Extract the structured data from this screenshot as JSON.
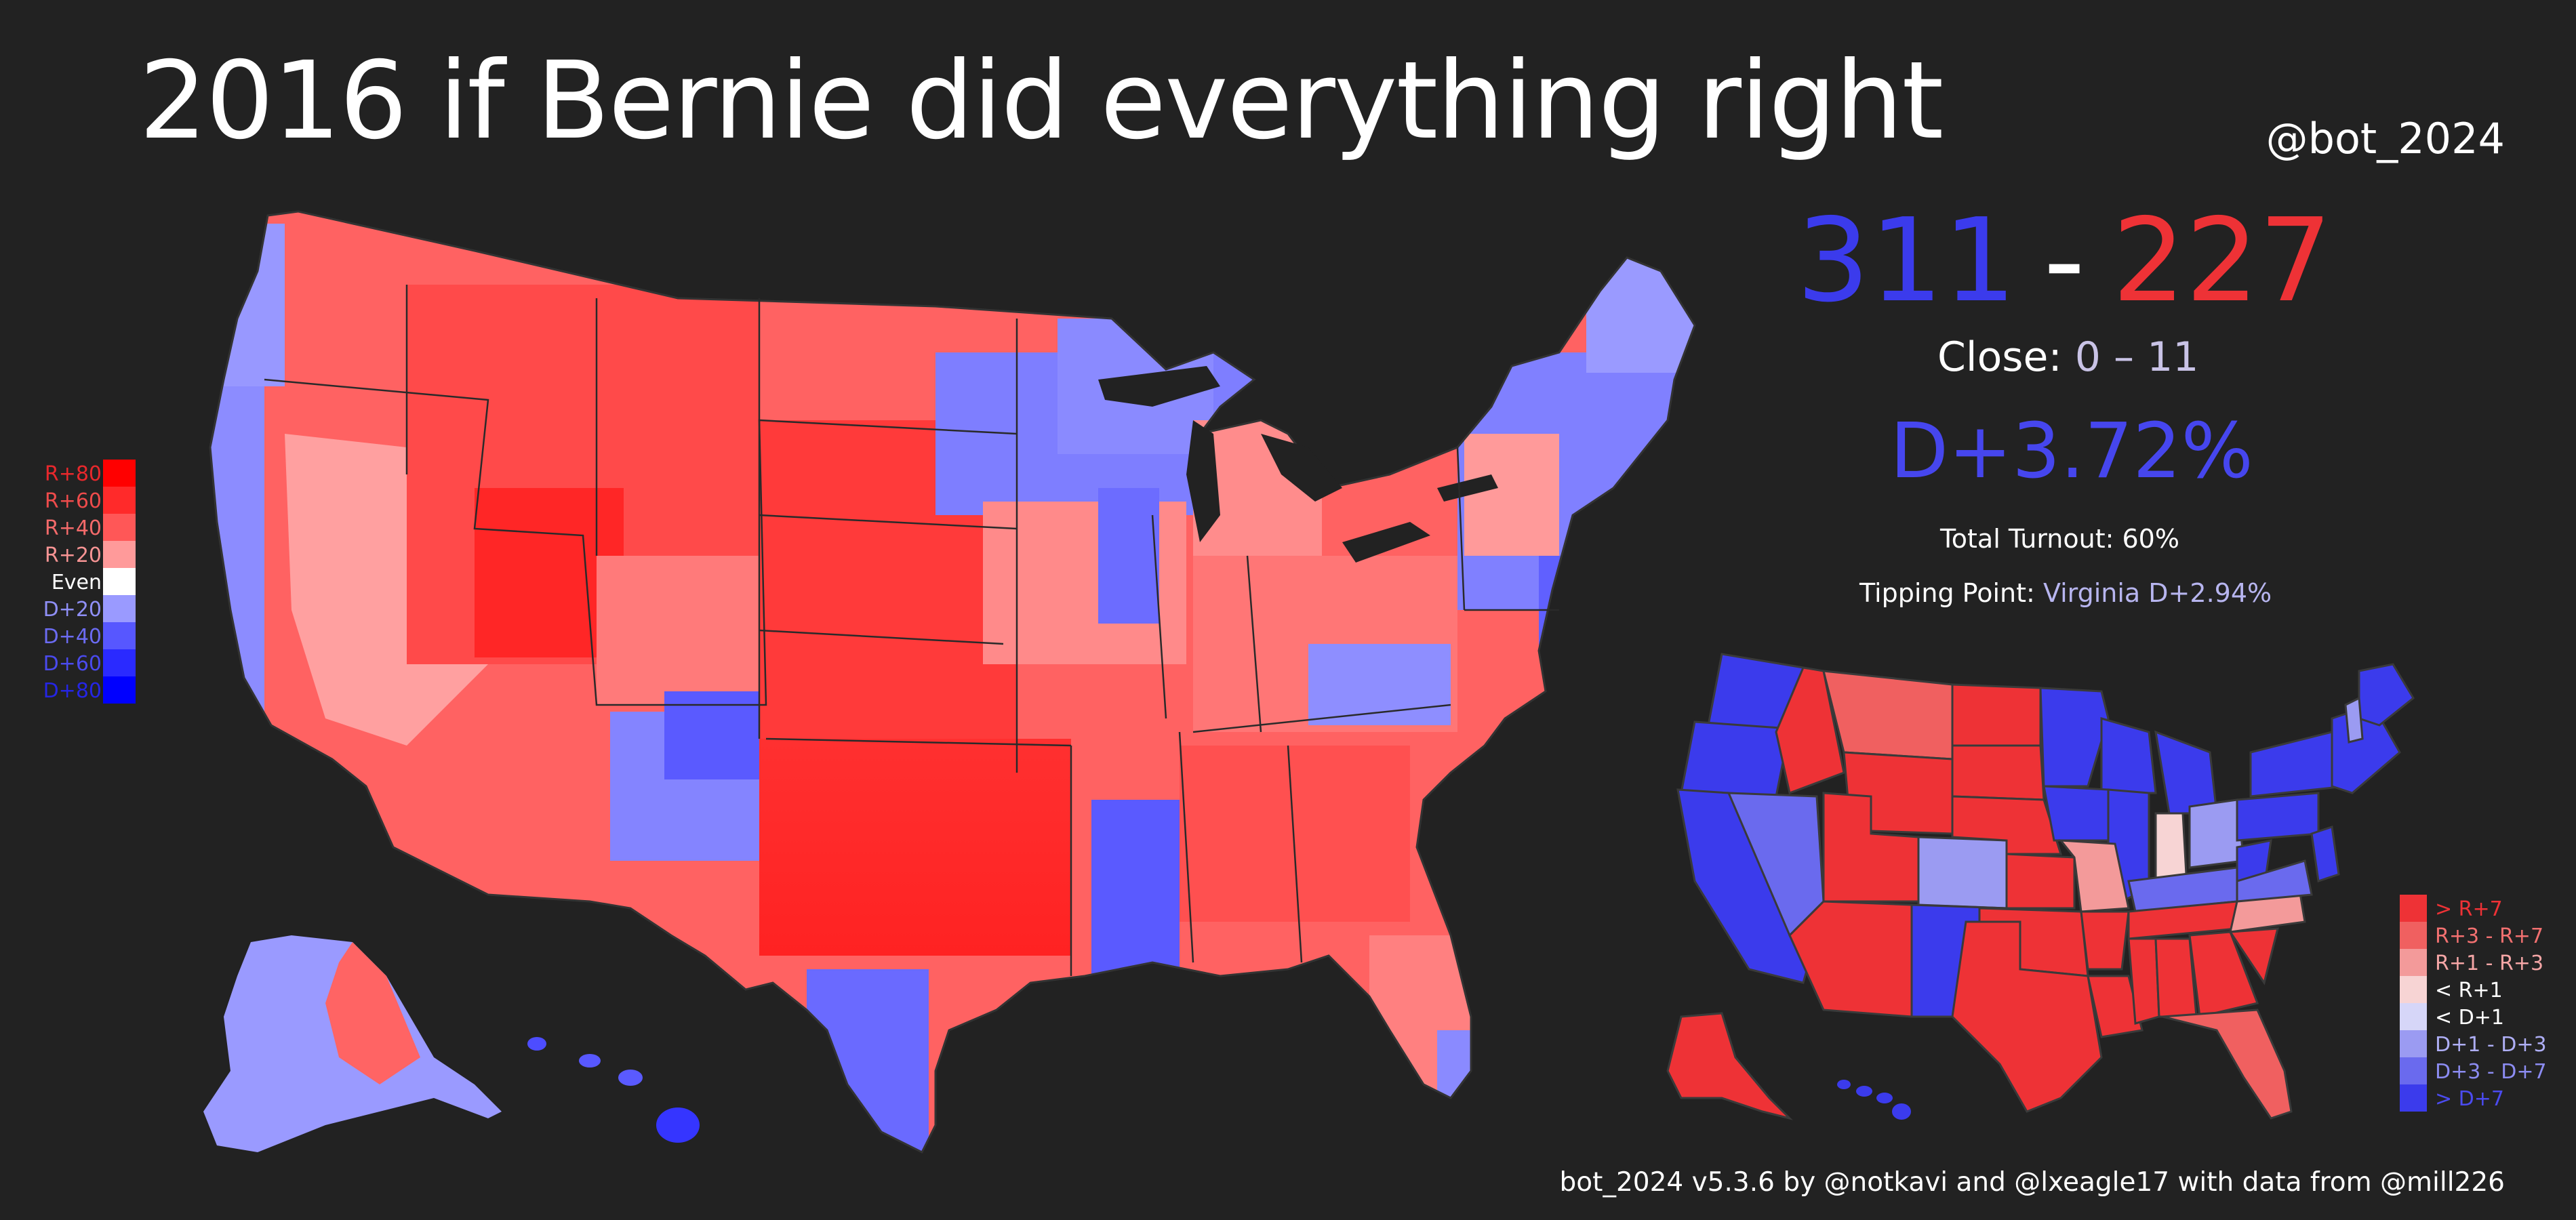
{
  "title": "2016 if Bernie did everything right",
  "handle": "@bot_2024",
  "electoral": {
    "dem": "311",
    "separator": "-",
    "rep": "227"
  },
  "close": {
    "label": "Close:",
    "value": "0 – 11"
  },
  "popular_margin": "D+3.72%",
  "turnout": "Total Turnout: 60%",
  "tipping_point": {
    "label": "Tipping Point:",
    "value": "Virginia D+2.94%"
  },
  "footer": "bot_2024 v5.3.6 by @notkavi and @lxeagle17 with data from @mill226",
  "colors": {
    "dem": "#3b3bec",
    "rep": "#ee3236",
    "background": "#222222"
  },
  "county_legend": [
    {
      "label": "R+80",
      "color": "#ff0000",
      "text_color": "#e8282c"
    },
    {
      "label": "R+60",
      "color": "#ff2a2a",
      "text_color": "#ee4b4b"
    },
    {
      "label": "R+40",
      "color": "#ff5757",
      "text_color": "#f36a6a"
    },
    {
      "label": "R+20",
      "color": "#ff9a9a",
      "text_color": "#f79494"
    },
    {
      "label": "Even",
      "color": "#ffffff",
      "text_color": "#ffffff"
    },
    {
      "label": "D+20",
      "color": "#9a9aff",
      "text_color": "#8f8ff6"
    },
    {
      "label": "D+40",
      "color": "#5757ff",
      "text_color": "#6b6bf2"
    },
    {
      "label": "D+60",
      "color": "#2a2aff",
      "text_color": "#4a4aee"
    },
    {
      "label": "D+80",
      "color": "#0000ff",
      "text_color": "#2525e4"
    }
  ],
  "state_legend": [
    {
      "label": "> R+7",
      "color": "#ee3236",
      "text_color": "#ee3236"
    },
    {
      "label": "R+3 - R+7",
      "color": "#f06060",
      "text_color": "#f27070"
    },
    {
      "label": "R+1 - R+3",
      "color": "#f39a9a",
      "text_color": "#f5a6a6"
    },
    {
      "label": "< R+1",
      "color": "#f7d4d4",
      "text_color": "#ffffff"
    },
    {
      "label": "< D+1",
      "color": "#d6d6f8",
      "text_color": "#ffffff"
    },
    {
      "label": "D+1 - D+3",
      "color": "#9b9bf2",
      "text_color": "#aeaef5"
    },
    {
      "label": "D+3 - D+7",
      "color": "#6a6aee",
      "text_color": "#8c8cf2"
    },
    {
      "label": "> D+7",
      "color": "#3b3bec",
      "text_color": "#4b4bf0"
    }
  ],
  "maps": {
    "county_map": {
      "name": "US county results map"
    },
    "state_map": {
      "name": "US state results map"
    }
  }
}
